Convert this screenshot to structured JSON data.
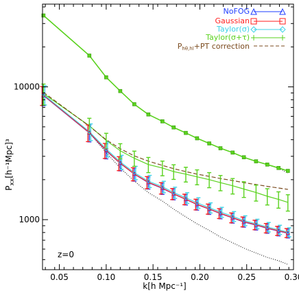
{
  "chart_data": {
    "type": "line",
    "xlabel": "k[h Mpc⁻¹]",
    "ylabel_main": "P",
    "ylabel_sub": "xx",
    "ylabel_unit": "[h⁻¹Mpc]³",
    "xlim": [
      0.032,
      0.3
    ],
    "ylim": [
      420,
      42000
    ],
    "yscale": "log",
    "x_ticks": [
      0.05,
      0.1,
      0.15,
      0.2,
      0.25,
      0.3
    ],
    "x_tick_labels": [
      "0.05",
      "0.10",
      "0.15",
      "0.20",
      "0.25",
      "0.30"
    ],
    "y_ticks": [
      1000,
      10000
    ],
    "y_tick_labels": [
      "1000",
      "10000"
    ],
    "annotation": "z=0",
    "legend": [
      {
        "label": "NoFOG",
        "color": "#1e3cff",
        "marker": "triangle"
      },
      {
        "label": "Gaussian",
        "color": "#ff1e1e",
        "marker": "square"
      },
      {
        "label": "Taylor(σ)",
        "color": "#3cd2e6",
        "marker": "diamond"
      },
      {
        "label": "Taylor(σ+τ)",
        "color": "#5ad21e",
        "marker": "plus"
      },
      {
        "label_main": "P",
        "label_sub": "hθ,hl",
        "label_rest": "+PT correction",
        "color": "#7a4a1e",
        "style": "dashed"
      }
    ],
    "x": [
      0.033,
      0.082,
      0.1,
      0.115,
      0.13,
      0.145,
      0.16,
      0.172,
      0.185,
      0.197,
      0.21,
      0.222,
      0.235,
      0.247,
      0.26,
      0.272,
      0.284,
      0.294
    ],
    "series": [
      {
        "name": "Taylor(σ+τ) real-space",
        "color": "#5ad21e",
        "values": [
          34500,
          17200,
          11800,
          9300,
          7400,
          6200,
          5500,
          4950,
          4500,
          4100,
          3750,
          3450,
          3200,
          2950,
          2750,
          2600,
          2450,
          2330
        ]
      },
      {
        "name": "NoFOG",
        "color": "#1e3cff",
        "values": [
          8600,
          4500,
          3300,
          2650,
          2200,
          1900,
          1720,
          1560,
          1420,
          1300,
          1200,
          1110,
          1030,
          960,
          910,
          860,
          820,
          790
        ],
        "errors": [
          1400,
          650,
          430,
          320,
          250,
          200,
          170,
          150,
          130,
          120,
          105,
          95,
          88,
          82,
          75,
          70,
          65,
          62
        ]
      },
      {
        "name": "Gaussian",
        "color": "#ff1e1e",
        "values": [
          8650,
          4520,
          3320,
          2660,
          2210,
          1910,
          1730,
          1565,
          1425,
          1305,
          1205,
          1115,
          1035,
          965,
          915,
          865,
          825,
          795
        ],
        "errors": [
          1400,
          650,
          430,
          320,
          250,
          200,
          170,
          150,
          130,
          120,
          105,
          95,
          88,
          82,
          75,
          70,
          65,
          62
        ]
      },
      {
        "name": "Taylor(σ)",
        "color": "#3cd2e6",
        "values": [
          8750,
          4600,
          3400,
          2720,
          2260,
          1950,
          1770,
          1600,
          1460,
          1340,
          1230,
          1140,
          1060,
          985,
          930,
          880,
          840,
          805
        ],
        "errors": [
          1450,
          660,
          440,
          330,
          260,
          205,
          175,
          155,
          135,
          122,
          108,
          98,
          90,
          84,
          77,
          72,
          67,
          63
        ]
      },
      {
        "name": "Taylor(σ+τ)",
        "color": "#5ad21e",
        "values": [
          8900,
          5100,
          3950,
          3300,
          2900,
          2600,
          2450,
          2300,
          2200,
          2100,
          2000,
          1900,
          1800,
          1700,
          1600,
          1500,
          1420,
          1350
        ],
        "errors": [
          1600,
          700,
          520,
          430,
          380,
          340,
          310,
          290,
          280,
          270,
          260,
          250,
          240,
          230,
          220,
          210,
          200,
          190
        ]
      },
      {
        "name": "PT correction",
        "color": "#7a4a1e",
        "style": "dashed",
        "values": [
          9100,
          5050,
          4000,
          3420,
          3020,
          2760,
          2560,
          2420,
          2300,
          2200,
          2120,
          2040,
          1970,
          1900,
          1840,
          1780,
          1730,
          1690
        ]
      }
    ],
    "dotted_curves": [
      {
        "name": "upper-dotted",
        "values": [
          34500,
          17200,
          11800,
          9300,
          7400,
          6200,
          5500,
          4950,
          4500,
          4100,
          3750,
          3450,
          3200,
          2950,
          2750,
          2600,
          2450,
          2240
        ]
      },
      {
        "name": "lower-dotted",
        "values": [
          8800,
          4500,
          3200,
          2450,
          1950,
          1600,
          1380,
          1200,
          1050,
          930,
          830,
          740,
          670,
          610,
          560,
          520,
          490,
          460
        ]
      }
    ]
  }
}
